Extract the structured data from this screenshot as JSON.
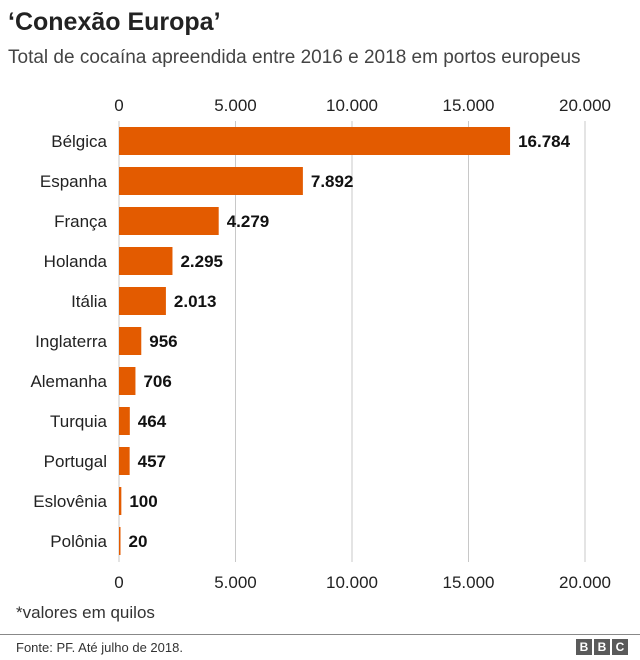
{
  "header": {
    "title": "‘Conexão Europa’",
    "subtitle": "Total de cocaína apreendida entre 2016 e 2018 em portos europeus"
  },
  "footer": {
    "note": "*valores em quilos",
    "source": "Fonte:  PF. Até julho de 2018.",
    "logo_letters": [
      "B",
      "B",
      "C"
    ]
  },
  "colors": {
    "bar": "#e35b00",
    "grid": "#c8c8c8",
    "text": "#222222",
    "logo": "#5a5a5a"
  },
  "chart_data": {
    "type": "bar",
    "orientation": "horizontal",
    "categories": [
      "Bélgica",
      "Espanha",
      "França",
      "Holanda",
      "Itália",
      "Inglaterra",
      "Alemanha",
      "Turquia",
      "Portugal",
      "Eslovênia",
      "Polônia"
    ],
    "values": [
      16784,
      7892,
      4279,
      2295,
      2013,
      956,
      706,
      464,
      457,
      100,
      20
    ],
    "value_labels": [
      "16.784",
      "7.892",
      "4.279",
      "2.295",
      "2.013",
      "956",
      "706",
      "464",
      "457",
      "100",
      "20"
    ],
    "xlim": [
      0,
      20000
    ],
    "ticks": [
      0,
      5000,
      10000,
      15000,
      20000
    ],
    "tick_labels": [
      "0",
      "5.000",
      "10.000",
      "15.000",
      "20.000"
    ],
    "grid": true,
    "tick_labels_position": "top and bottom"
  }
}
